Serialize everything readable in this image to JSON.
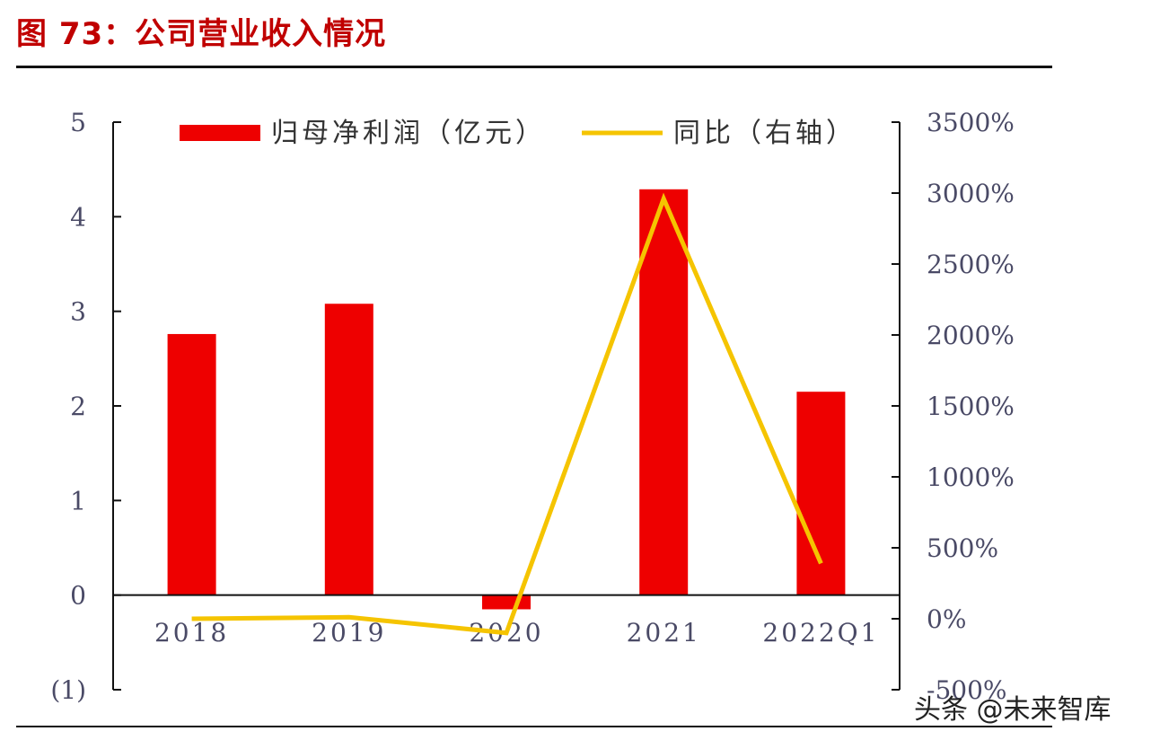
{
  "figure": {
    "title": "图 73：公司营业收入情况",
    "watermark": "头条 @未来智库"
  },
  "chart_data": {
    "type": "bar",
    "categories": [
      "2018",
      "2019",
      "2020",
      "2021",
      "2022Q1"
    ],
    "series": [
      {
        "name": "归母净利润（亿元）",
        "type": "bar",
        "axis": "left",
        "color": "#ee0000",
        "values": [
          2.76,
          3.08,
          -0.15,
          4.29,
          2.15
        ]
      },
      {
        "name": "同比（右轴）",
        "type": "line",
        "axis": "right",
        "color": "#f5c400",
        "values": [
          0,
          11,
          -100,
          2960,
          390
        ]
      }
    ],
    "left_axis": {
      "min": -1,
      "max": 5,
      "ticks": [
        5,
        4,
        3,
        2,
        1,
        0,
        -1
      ],
      "tick_labels": [
        "5",
        "4",
        "3",
        "2",
        "1",
        "0",
        "(1)"
      ]
    },
    "right_axis": {
      "min": -500,
      "max": 3500,
      "ticks": [
        3500,
        3000,
        2500,
        2000,
        1500,
        1000,
        500,
        0,
        -500
      ],
      "tick_labels": [
        "3500%",
        "3000%",
        "2500%",
        "2000%",
        "1500%",
        "1000%",
        "500%",
        "0%",
        "-500%"
      ]
    },
    "legend_position": "top",
    "grid": false
  }
}
